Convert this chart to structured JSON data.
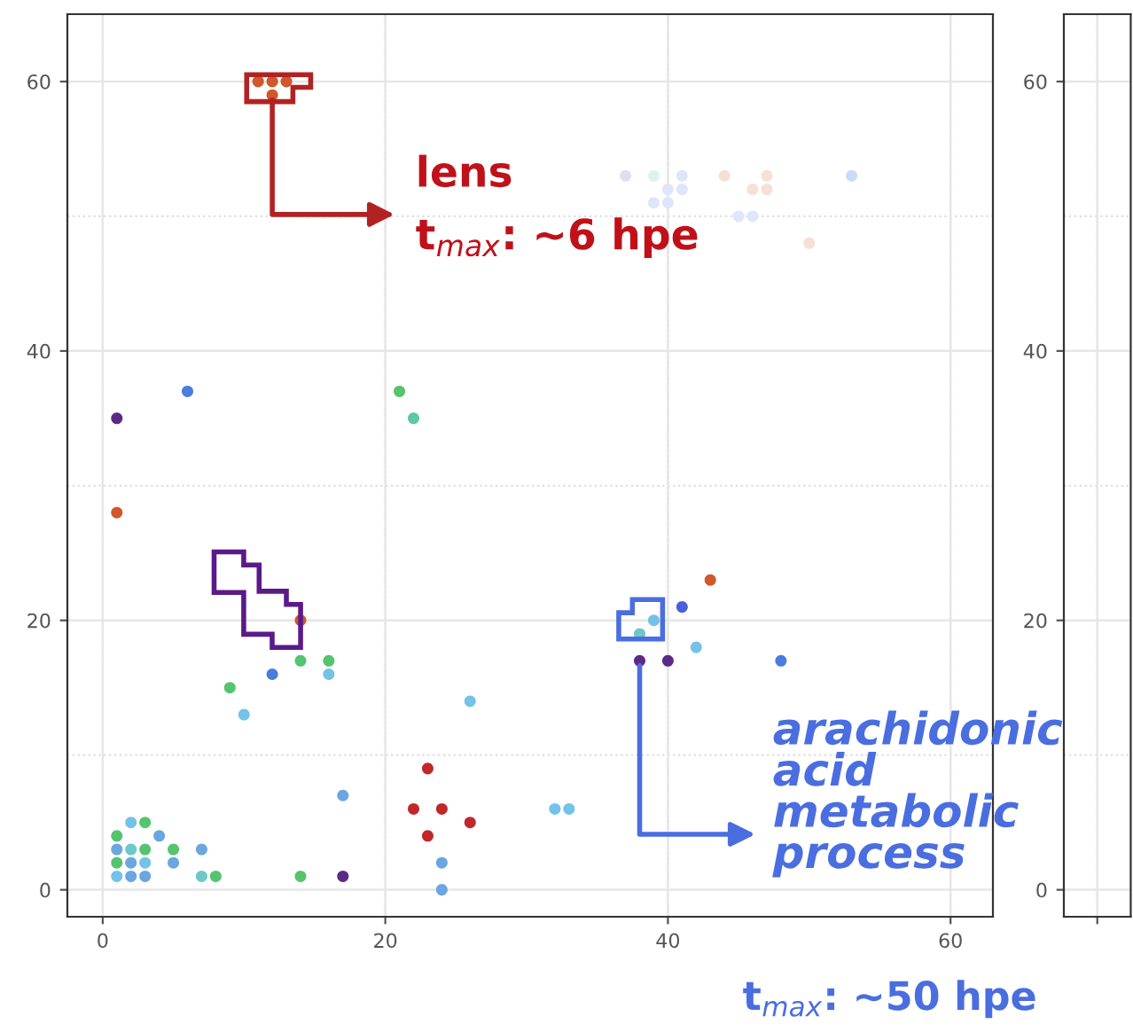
{
  "chart_data": [
    {
      "type": "scatter",
      "x": [
        1,
        1,
        6,
        21,
        22,
        11,
        12,
        13,
        12,
        37,
        39,
        41,
        40,
        41,
        39,
        40,
        44,
        46,
        47,
        47,
        45,
        46,
        50,
        53,
        14,
        14,
        16,
        16,
        12,
        9,
        10,
        26,
        17,
        23,
        22,
        24,
        26,
        23,
        24,
        24,
        14,
        17,
        2,
        3,
        1,
        4,
        1,
        2,
        3,
        5,
        7,
        1,
        2,
        3,
        5,
        1,
        2,
        3,
        7,
        8,
        43,
        41,
        39,
        38,
        42,
        38,
        40,
        48,
        32,
        33
      ],
      "values": [
        28,
        35,
        37,
        37,
        35,
        60,
        60,
        60,
        59,
        53,
        53,
        53,
        52,
        52,
        51,
        51,
        53,
        52,
        53,
        52,
        50,
        50,
        48,
        53,
        20,
        17,
        17,
        16,
        16,
        15,
        13,
        14,
        7,
        9,
        6,
        6,
        5,
        4,
        2,
        0,
        1,
        1,
        5,
        5,
        4,
        4,
        3,
        3,
        3,
        3,
        3,
        2,
        2,
        2,
        2,
        1,
        1,
        1,
        1,
        1,
        23,
        21,
        20,
        19,
        18,
        17,
        17,
        17,
        6,
        6
      ],
      "colors": [
        "#d0582a",
        "#5b2a86",
        "#4a7de0",
        "#55c46e",
        "#5cc8a8",
        "#d0582a",
        "#d0582a",
        "#d0582a",
        "#d0582a",
        "#e6dcf0",
        "#dcf2ee",
        "#dde6fa",
        "#dde6fa",
        "#dde6fa",
        "#dde6fa",
        "#dde6fa",
        "#f6e0d6",
        "#f6e0d6",
        "#f6e0d6",
        "#f6e0d6",
        "#dde6fa",
        "#dde6fa",
        "#f6e0d6",
        "#c8dcf8",
        "#d0582a",
        "#55c46e",
        "#55c46e",
        "#74c2e8",
        "#4a7de0",
        "#55c46e",
        "#74c2e8",
        "#74c2e8",
        "#6aa6e0",
        "#c0282a",
        "#c0282a",
        "#c0282a",
        "#c0282a",
        "#c0282a",
        "#6aa6e0",
        "#6aa6e0",
        "#55c46e",
        "#5b2a86",
        "#74c2e8",
        "#55c46e",
        "#55c46e",
        "#6aa6e0",
        "#6aa6e0",
        "#6ec8c8",
        "#55c46e",
        "#55c46e",
        "#6aa6e0",
        "#55c46e",
        "#6aa6e0",
        "#74c2e8",
        "#6aa6e0",
        "#74c2e8",
        "#6aa6e0",
        "#6aa6e0",
        "#6ec8c8",
        "#55c46e",
        "#d0582a",
        "#4a60d8",
        "#74c2e8",
        "#6ec8c8",
        "#74c2e8",
        "#5b2a86",
        "#5b2a86",
        "#4a7de0",
        "#74c2e8",
        "#74c2e8"
      ],
      "marker": "circle",
      "xlim": [
        -2.5,
        63
      ],
      "ylim": [
        -2,
        65
      ],
      "xticks": [
        0,
        20,
        40,
        60
      ],
      "yticks": [
        0,
        20,
        40,
        60
      ],
      "grid": true,
      "annotations": [
        {
          "text": "lens",
          "x": 12,
          "y": 59
        },
        "t$_{max}$: ~6 hpe",
        {
          "text": "arachidonic\nacid\nmetabolic\nprocess",
          "x": 38,
          "y": 17
        },
        "t$_{max}$: ~50 hpe"
      ]
    },
    {
      "type": "scatter",
      "categories": [
        null
      ],
      "values": [
        null
      ],
      "ylim": [
        -2,
        65
      ],
      "yticks": [
        0,
        20,
        40,
        60
      ],
      "tick_labels": "y",
      "grid": true
    }
  ]
}
